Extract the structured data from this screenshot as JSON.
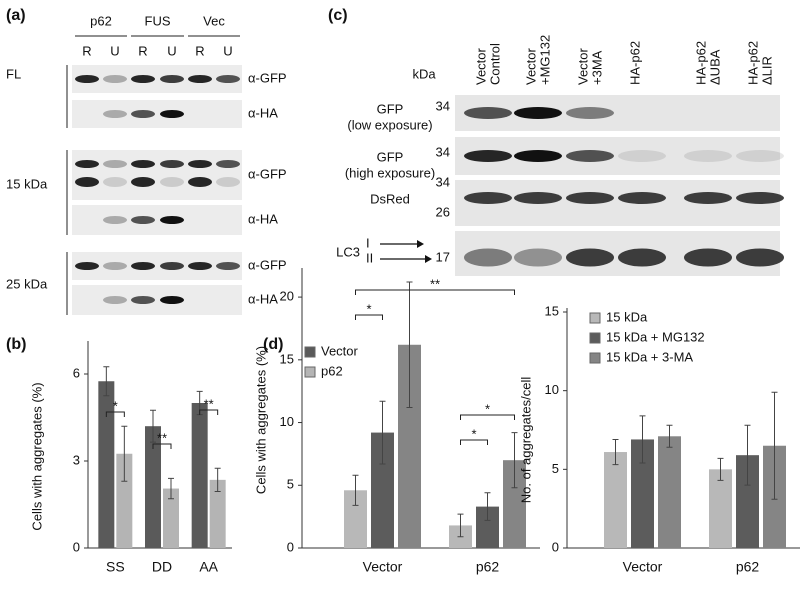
{
  "panel_a": {
    "label": "(a)",
    "groups": [
      "p62",
      "FUS",
      "Vec"
    ],
    "lanes": [
      "R",
      "U",
      "R",
      "U",
      "R",
      "U"
    ],
    "blocks": [
      {
        "name": "FL",
        "rows": [
          "α-GFP",
          "α-HA"
        ]
      },
      {
        "name": "15 kDa",
        "rows": [
          "α-GFP",
          "α-HA"
        ]
      },
      {
        "name": "25 kDa",
        "rows": [
          "α-GFP",
          "α-HA"
        ]
      }
    ]
  },
  "panel_c": {
    "label": "(c)",
    "unit": "kDa",
    "lanes": [
      [
        "Vector",
        "Control"
      ],
      [
        "Vector",
        "+MG132"
      ],
      [
        "Vector",
        "+3MA"
      ],
      [
        "HA-p62"
      ],
      [
        "HA-p62",
        "ΔUBA"
      ],
      [
        "HA-p62",
        "ΔLIR"
      ]
    ],
    "rows": [
      {
        "name": [
          "GFP",
          "(low exposure)"
        ],
        "markers": [
          "34"
        ]
      },
      {
        "name": [
          "GFP",
          "(high exposure)"
        ],
        "markers": [
          "34"
        ]
      },
      {
        "name": [
          "DsRed"
        ],
        "markers": [
          "34",
          "26"
        ]
      },
      {
        "name": [
          "LC3"
        ],
        "bands": [
          "I",
          "II"
        ],
        "markers": [
          "17"
        ]
      }
    ]
  },
  "chart_data": [
    {
      "type": "bar",
      "panel_label": "(b)",
      "y_label": "Cells with aggregates (%)",
      "categories": [
        "SS",
        "DD",
        "AA"
      ],
      "series": [
        {
          "name": "Vector",
          "color": "#5a5a5a",
          "values": [
            5.75,
            4.2,
            5.0
          ],
          "errors": [
            0.5,
            0.55,
            0.4
          ]
        },
        {
          "name": "p62",
          "color": "#b4b4b4",
          "values": [
            3.25,
            2.05,
            2.35
          ],
          "errors": [
            0.95,
            0.35,
            0.4
          ]
        }
      ],
      "ylim": [
        0,
        7
      ],
      "yticks": [
        0,
        3,
        6
      ],
      "legend": "upper right",
      "annotations": [
        "*",
        "**",
        "**"
      ]
    },
    {
      "type": "bar",
      "panel_label": "(d)",
      "y_label": "Cells with aggregates (%)",
      "categories": [
        "Vector",
        "p62"
      ],
      "series": [
        {
          "name": "15 kDa",
          "color": "#b8b8b8",
          "values": [
            4.6,
            1.8
          ],
          "errors": [
            1.2,
            0.9
          ]
        },
        {
          "name": "15 kDa + MG132",
          "color": "#5c5c5c",
          "values": [
            9.2,
            3.3
          ],
          "errors": [
            2.5,
            1.1
          ]
        },
        {
          "name": "15 kDa + 3-MA",
          "color": "#858585",
          "values": [
            16.2,
            7.0
          ],
          "errors": [
            5.0,
            2.2
          ]
        }
      ],
      "ylim": [
        0,
        22
      ],
      "yticks": [
        0,
        5,
        10,
        15,
        20
      ],
      "legend": false,
      "annotations": [
        "**",
        "*",
        "*",
        "*"
      ]
    },
    {
      "type": "bar",
      "y_label": "No. of aggregates/cell",
      "categories": [
        "Vector",
        "p62"
      ],
      "series": [
        {
          "name": "15 kDa",
          "color": "#b8b8b8",
          "values": [
            6.1,
            5.0
          ],
          "errors": [
            0.8,
            0.7
          ]
        },
        {
          "name": "15 kDa + MG132",
          "color": "#5c5c5c",
          "values": [
            6.9,
            5.9
          ],
          "errors": [
            1.5,
            1.9
          ]
        },
        {
          "name": "15 kDa + 3-MA",
          "color": "#858585",
          "values": [
            7.1,
            6.5
          ],
          "errors": [
            0.7,
            3.4
          ]
        }
      ],
      "ylim": [
        0,
        15
      ],
      "yticks": [
        0,
        5,
        10,
        15
      ],
      "legend": "upper left"
    }
  ]
}
